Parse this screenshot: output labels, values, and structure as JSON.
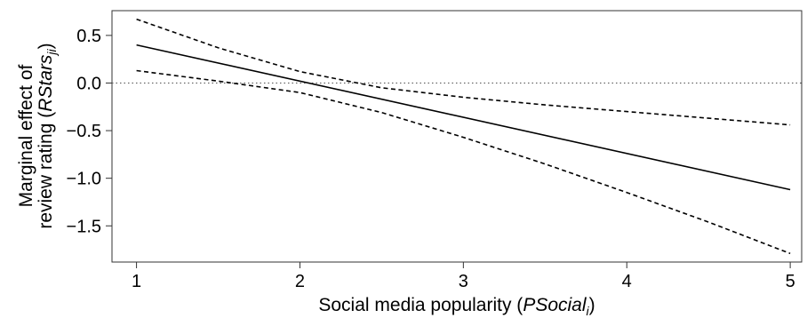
{
  "chart_data": {
    "type": "line",
    "xlabel": {
      "prefix": "Social media popularity (",
      "symbol": "PSocial",
      "subscript": "i",
      "suffix": ")"
    },
    "ylabel": {
      "line1": "Marginal effect of",
      "line2_prefix": "review rating (",
      "line2_symbol": "RStars",
      "line2_subscript": "ji",
      "line2_suffix": ")"
    },
    "xlim": [
      0.85,
      5.07
    ],
    "ylim": [
      -1.88,
      0.76
    ],
    "xticks": [
      "1",
      "2",
      "3",
      "4",
      "5"
    ],
    "yticks": [
      "0.5",
      "0.0",
      "−0.5",
      "−1.0",
      "−1.5"
    ],
    "ytick_values": [
      0.5,
      0.0,
      -0.5,
      -1.0,
      -1.5
    ],
    "xtick_values": [
      1,
      2,
      3,
      4,
      5
    ],
    "series": [
      {
        "style": "solid",
        "x": [
          1,
          5
        ],
        "y": [
          0.4,
          -1.12
        ]
      },
      {
        "style": "dashed",
        "x": [
          1,
          1.5,
          2,
          2.5,
          3,
          3.5,
          4,
          4.5,
          5
        ],
        "y": [
          0.67,
          0.37,
          0.12,
          -0.05,
          -0.15,
          -0.23,
          -0.3,
          -0.37,
          -0.44
        ]
      },
      {
        "style": "dashed",
        "x": [
          1,
          1.5,
          2,
          2.5,
          3,
          3.5,
          4,
          4.5,
          5
        ],
        "y": [
          0.13,
          0.02,
          -0.1,
          -0.31,
          -0.57,
          -0.85,
          -1.15,
          -1.46,
          -1.79
        ]
      }
    ],
    "reference_line": {
      "y": 0,
      "style": "dotted"
    },
    "grid": false,
    "legend": "none"
  }
}
